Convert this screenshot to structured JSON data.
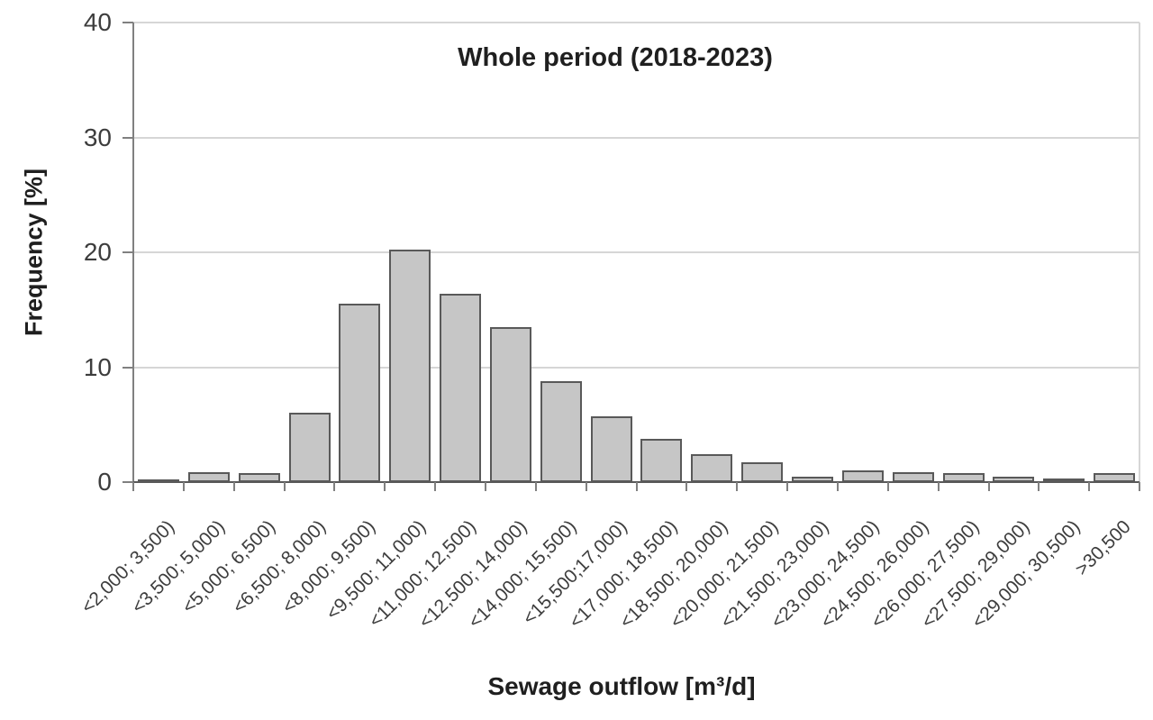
{
  "chart_data": {
    "type": "bar",
    "title": "Whole period (2018-2023)",
    "xlabel": "Sewage outflow [m³/d]",
    "ylabel": "Frequency [%]",
    "ylim": [
      0,
      40
    ],
    "yticks": [
      0,
      10,
      20,
      30,
      40
    ],
    "grid": true,
    "legend_position": "none",
    "categories": [
      "<2,000; 3,500)",
      "<3,500; 5,000)",
      "<5,000; 6,500)",
      "<6,500; 8,000)",
      "<8,000; 9,500)",
      "<9,500; 11,000)",
      "<11,000; 12,500)",
      "<12,500; 14,000)",
      "<14,000; 15,500)",
      "<15,500;17,000)",
      "<17,000; 18,500)",
      "<18,500; 20,000)",
      "<20,000; 21,500)",
      "<21,500; 23,000)",
      "<23,000; 24,500)",
      "<24,500; 26,000)",
      "<26,000; 27,500)",
      "<27,500; 29,000)",
      "<29,000; 30,500)",
      ">30,500"
    ],
    "values": [
      0.2,
      0.9,
      0.8,
      6.0,
      15.5,
      20.2,
      16.4,
      13.5,
      8.8,
      5.7,
      3.8,
      2.4,
      1.7,
      0.5,
      1.0,
      0.9,
      0.8,
      0.5,
      0.3,
      0.8
    ],
    "colors": {
      "bar_fill": "#c6c6c6",
      "bar_border": "#595959",
      "gridline": "#d6d6d6",
      "axis": "#808080",
      "baseline": "#595959",
      "tick_text": "#3d3d3d",
      "title_text": "#1f1f1f",
      "background": "#ffffff"
    }
  }
}
